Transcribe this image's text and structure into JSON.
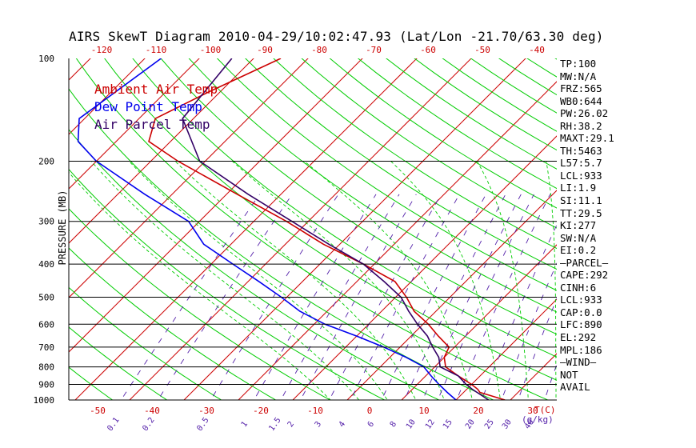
{
  "title": "AIRS SkewT Diagram 2010-04-29/10:02:47.93 (Lat/Lon -21.70/63.30 deg)",
  "colors": {
    "ambient": "#cc0000",
    "dewpoint": "#0000ee",
    "parcel": "#330066",
    "isotherm": "#cc0000",
    "dry_adiabat": "#00cc00",
    "mixing_ratio": "#5522aa",
    "tick_label": "#cc0000"
  },
  "legend": [
    {
      "label": "Ambient Air Temp",
      "color": "#cc0000"
    },
    {
      "label": "Dew Point Temp",
      "color": "#0000ee"
    },
    {
      "label": "Air Parcel Temp",
      "color": "#330066"
    }
  ],
  "side_panel": [
    "TP:100",
    "MW:N/A",
    "FRZ:565",
    "WB0:644",
    "PW:26.02",
    "RH:38.2",
    "MAXT:29.1",
    "TH:5463",
    "L57:5.7",
    "LCL:933",
    "LI:1.9",
    "SI:11.1",
    "TT:29.5",
    "KI:277",
    "SW:N/A",
    "EI:0.2",
    "—PARCEL—",
    "CAPE:292",
    "CINH:6",
    "LCL:933",
    "CAP:0.0",
    "LFC:890",
    "EL:292",
    "MPL:186",
    "—WIND—",
    "NOT",
    "AVAIL"
  ],
  "chart_data": {
    "type": "line",
    "subtype": "skew-T log-P",
    "ylabel": "PRESSURE (MB)",
    "x_unit_label": "T(C)",
    "mixing_ratio_unit_label": "(g/kg)",
    "pressure_scale": "log",
    "pressure_ticks": [
      100,
      200,
      300,
      400,
      500,
      600,
      700,
      800,
      900,
      1000
    ],
    "bottom_temp_ticks": [
      -50,
      -40,
      -30,
      -20,
      -10,
      0,
      10,
      20,
      30
    ],
    "top_temp_ticks": [
      -120,
      -110,
      -100,
      -90,
      -80,
      -70,
      -60,
      -50,
      -40
    ],
    "mixing_ratio_ticks": [
      "0.1",
      "0.2",
      "0.5",
      "1",
      "1.5",
      "2",
      "3",
      "4",
      "6",
      "8",
      "10",
      "12",
      "15",
      "20",
      "25",
      "30",
      "40"
    ],
    "series": [
      {
        "name": "Ambient Air Temp",
        "points": [
          {
            "p": 100,
            "t": -75
          },
          {
            "p": 125,
            "t": -82
          },
          {
            "p": 150,
            "t": -87
          },
          {
            "p": 175,
            "t": -84
          },
          {
            "p": 200,
            "t": -75
          },
          {
            "p": 250,
            "t": -58
          },
          {
            "p": 300,
            "t": -44
          },
          {
            "p": 350,
            "t": -33
          },
          {
            "p": 400,
            "t": -22
          },
          {
            "p": 450,
            "t": -13
          },
          {
            "p": 500,
            "t": -8
          },
          {
            "p": 550,
            "t": -4
          },
          {
            "p": 600,
            "t": 1
          },
          {
            "p": 650,
            "t": 5
          },
          {
            "p": 700,
            "t": 9
          },
          {
            "p": 750,
            "t": 10
          },
          {
            "p": 800,
            "t": 12
          },
          {
            "p": 850,
            "t": 16
          },
          {
            "p": 900,
            "t": 20
          },
          {
            "p": 930,
            "t": 22
          },
          {
            "p": 950,
            "t": 23
          },
          {
            "p": 1000,
            "t": 29
          }
        ]
      },
      {
        "name": "Dew Point Temp",
        "points": [
          {
            "p": 100,
            "t": -97
          },
          {
            "p": 150,
            "t": -101
          },
          {
            "p": 175,
            "t": -97
          },
          {
            "p": 200,
            "t": -90
          },
          {
            "p": 250,
            "t": -75
          },
          {
            "p": 300,
            "t": -62
          },
          {
            "p": 350,
            "t": -55
          },
          {
            "p": 400,
            "t": -46
          },
          {
            "p": 450,
            "t": -38
          },
          {
            "p": 500,
            "t": -31
          },
          {
            "p": 550,
            "t": -25
          },
          {
            "p": 600,
            "t": -18
          },
          {
            "p": 650,
            "t": -10
          },
          {
            "p": 700,
            "t": -3
          },
          {
            "p": 750,
            "t": 3
          },
          {
            "p": 800,
            "t": 8
          },
          {
            "p": 850,
            "t": 11
          },
          {
            "p": 900,
            "t": 14
          },
          {
            "p": 950,
            "t": 17
          },
          {
            "p": 1000,
            "t": 20
          }
        ]
      },
      {
        "name": "Air Parcel Temp",
        "points": [
          {
            "p": 100,
            "t": -84
          },
          {
            "p": 150,
            "t": -82
          },
          {
            "p": 200,
            "t": -71
          },
          {
            "p": 250,
            "t": -56
          },
          {
            "p": 300,
            "t": -43
          },
          {
            "p": 350,
            "t": -32
          },
          {
            "p": 400,
            "t": -22
          },
          {
            "p": 450,
            "t": -15
          },
          {
            "p": 500,
            "t": -9
          },
          {
            "p": 550,
            "t": -5
          },
          {
            "p": 600,
            "t": -1
          },
          {
            "p": 650,
            "t": 3
          },
          {
            "p": 700,
            "t": 6
          },
          {
            "p": 750,
            "t": 9
          },
          {
            "p": 800,
            "t": 11
          },
          {
            "p": 850,
            "t": 16
          },
          {
            "p": 900,
            "t": 19
          },
          {
            "p": 930,
            "t": 21
          },
          {
            "p": 1000,
            "t": 26
          }
        ]
      }
    ]
  }
}
